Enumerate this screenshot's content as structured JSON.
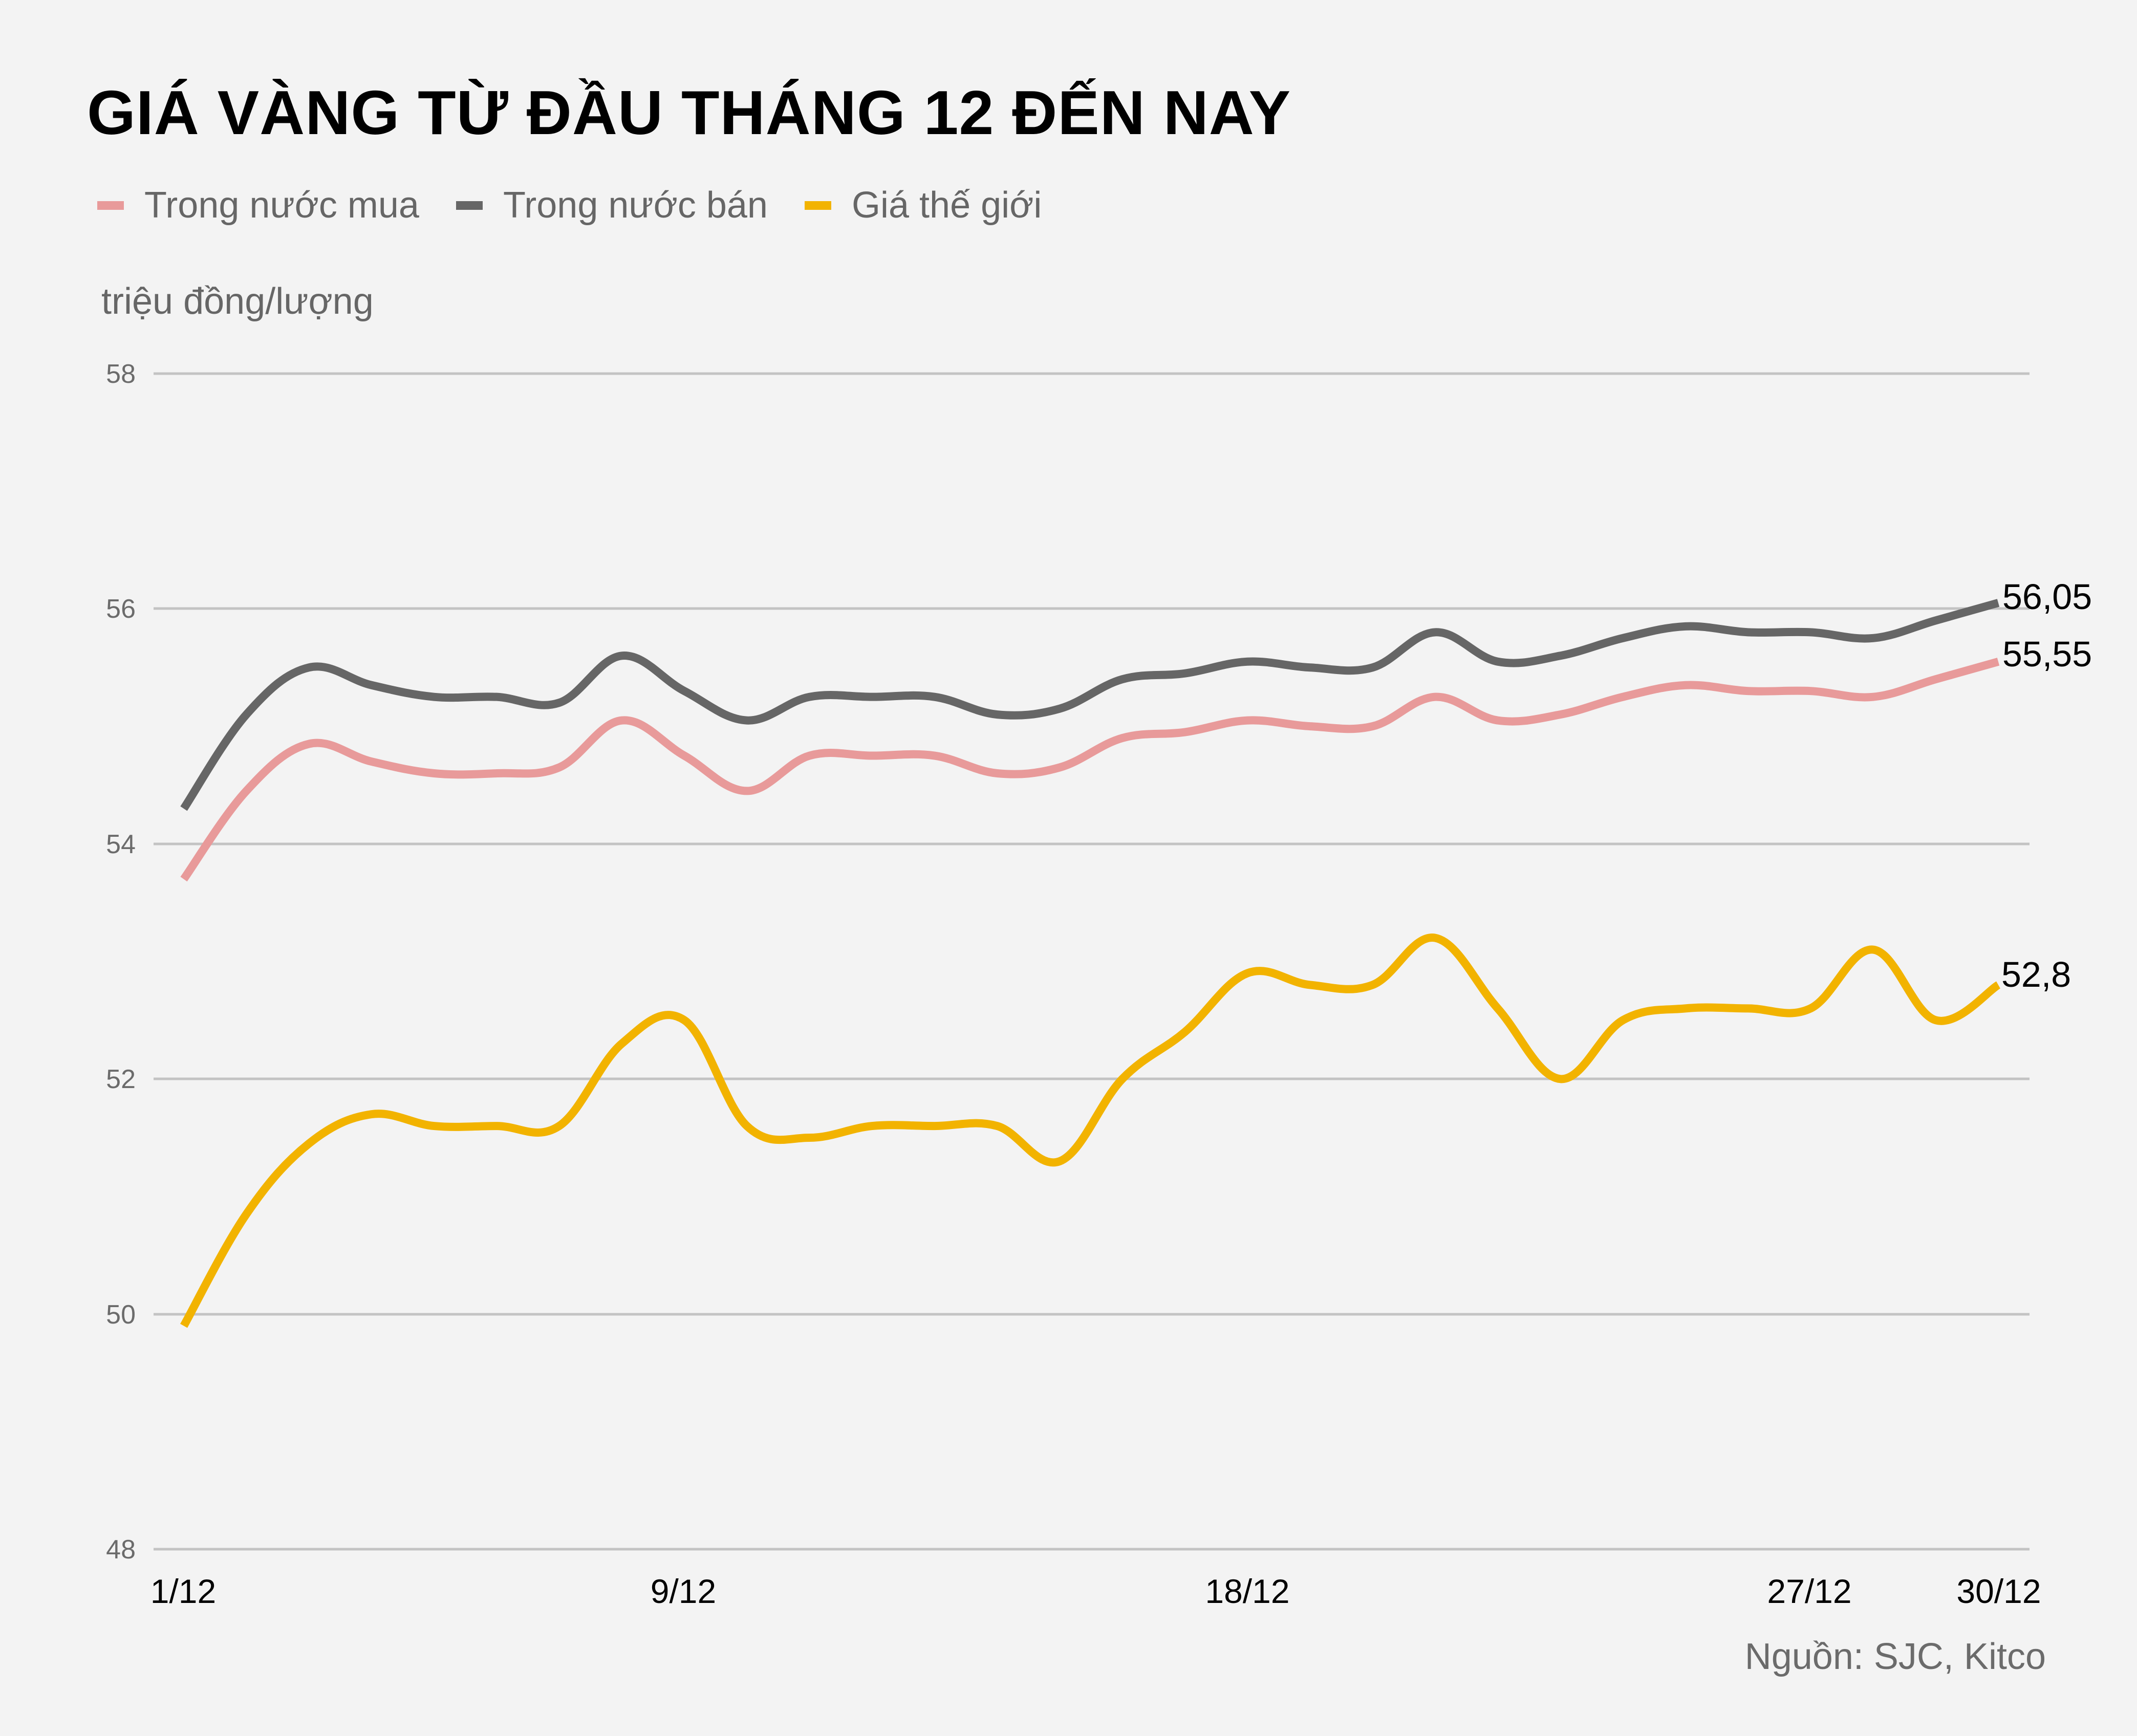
{
  "title": "GIÁ VÀNG TỪ ĐẦU THÁNG 12 ĐẾN NAY",
  "legend": [
    {
      "label": "Trong nước mua",
      "color": "#e89a9a"
    },
    {
      "label": "Trong nước bán",
      "color": "#666666"
    },
    {
      "label": "Giá thế giới",
      "color": "#f2b300"
    }
  ],
  "unit_label": "triệu đồng/lượng",
  "source": "Nguồn: SJC, Kitco",
  "end_labels": {
    "mua": "55,55",
    "ban": "56,05",
    "the_gioi": "52,8"
  },
  "y_ticks": [
    "58",
    "56",
    "54",
    "52",
    "50",
    "48"
  ],
  "x_ticks": [
    "1/12",
    "9/12",
    "18/12",
    "27/12",
    "30/12"
  ],
  "chart_data": {
    "type": "line",
    "title": "GIÁ VÀNG TỪ ĐẦU THÁNG 12 ĐẾN NAY",
    "xlabel": "",
    "ylabel": "triệu đồng/lượng",
    "ylim": [
      48,
      58
    ],
    "yticks": [
      48,
      50,
      52,
      54,
      56,
      58
    ],
    "grid": true,
    "legend_position": "top-left",
    "x_tick_labels": [
      "1/12",
      "9/12",
      "18/12",
      "27/12",
      "30/12"
    ],
    "x_index": [
      0,
      1,
      2,
      3,
      4,
      5,
      6,
      7,
      8,
      9,
      10,
      11,
      12,
      13,
      14,
      15,
      16,
      17,
      18,
      19,
      20,
      21,
      22,
      23,
      24,
      25,
      26,
      27,
      28,
      29
    ],
    "series": [
      {
        "name": "Trong nước mua",
        "color": "#e89a9a",
        "values": [
          53.7,
          54.45,
          54.85,
          54.7,
          54.6,
          54.6,
          54.65,
          55.05,
          54.75,
          54.45,
          54.75,
          54.75,
          54.75,
          54.6,
          54.65,
          54.9,
          54.95,
          55.05,
          55.0,
          55.0,
          55.25,
          55.05,
          55.1,
          55.25,
          55.35,
          55.3,
          55.3,
          55.25,
          55.4,
          55.55
        ]
      },
      {
        "name": "Trong nước bán",
        "color": "#666666",
        "values": [
          54.3,
          55.1,
          55.5,
          55.35,
          55.25,
          55.25,
          55.2,
          55.6,
          55.3,
          55.05,
          55.25,
          55.25,
          55.25,
          55.1,
          55.15,
          55.4,
          55.45,
          55.55,
          55.5,
          55.5,
          55.8,
          55.55,
          55.6,
          55.75,
          55.85,
          55.8,
          55.8,
          55.75,
          55.9,
          56.05
        ]
      },
      {
        "name": "Giá thế giới",
        "color": "#f2b300",
        "values": [
          49.9,
          50.85,
          51.45,
          51.7,
          51.6,
          51.6,
          51.6,
          52.3,
          52.5,
          51.6,
          51.5,
          51.6,
          51.6,
          51.6,
          51.3,
          52.0,
          52.4,
          52.9,
          52.8,
          52.8,
          53.2,
          52.6,
          52.0,
          52.5,
          52.6,
          52.6,
          52.6,
          53.1,
          52.5,
          52.8
        ]
      }
    ],
    "annotations": [
      {
        "series": "Trong nước bán",
        "text": "56,05"
      },
      {
        "series": "Trong nước mua",
        "text": "55,55"
      },
      {
        "series": "Giá thế giới",
        "text": "52,8"
      }
    ]
  }
}
